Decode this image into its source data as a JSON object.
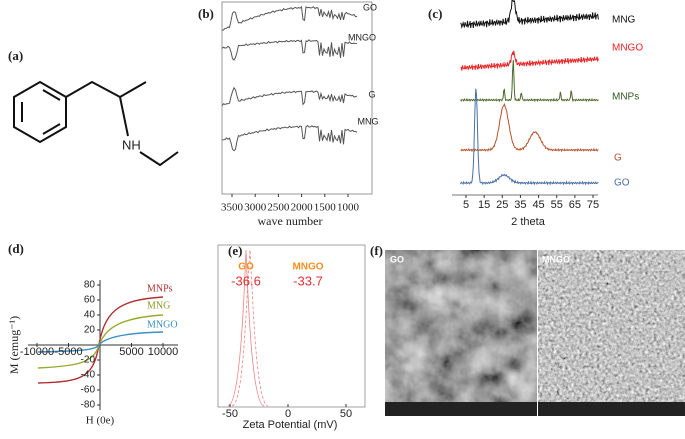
{
  "panels": {
    "a": {
      "label": "(a)",
      "atom": "NH"
    },
    "b": {
      "label": "(b)",
      "xticks": [
        3500,
        3000,
        2500,
        2000,
        1500,
        1000
      ],
      "xlabel": "wave number",
      "curves": [
        "GO",
        "MNGO",
        "G",
        "MNG"
      ]
    },
    "c": {
      "label": "(c)",
      "xticks": [
        5,
        15,
        25,
        35,
        45,
        55,
        65,
        75
      ],
      "xlabel": "2 theta",
      "curves": [
        "MNG",
        "MNGO",
        "MNPs",
        "G",
        "GO"
      ]
    },
    "d": {
      "label": "(d)",
      "yticks": [
        80,
        60,
        40,
        20,
        -20,
        -40,
        -60,
        -80
      ],
      "xticks": [
        -10000,
        -5000,
        5000,
        10000
      ],
      "ylabel": "M (emug⁻¹)",
      "xlabel": "H (0e)",
      "curves": [
        "MNPs",
        "MNG",
        "MNGO"
      ]
    },
    "e": {
      "label": "(e)",
      "xticks": [
        -50,
        0,
        50
      ],
      "xlabel": "Zeta Potential (mV)",
      "annotations": [
        {
          "name": "GO",
          "value": -36.6
        },
        {
          "name": "MNGO",
          "value": -33.7
        }
      ]
    },
    "f": {
      "label": "(f)",
      "images": [
        "GO",
        "MNGO"
      ]
    }
  }
}
